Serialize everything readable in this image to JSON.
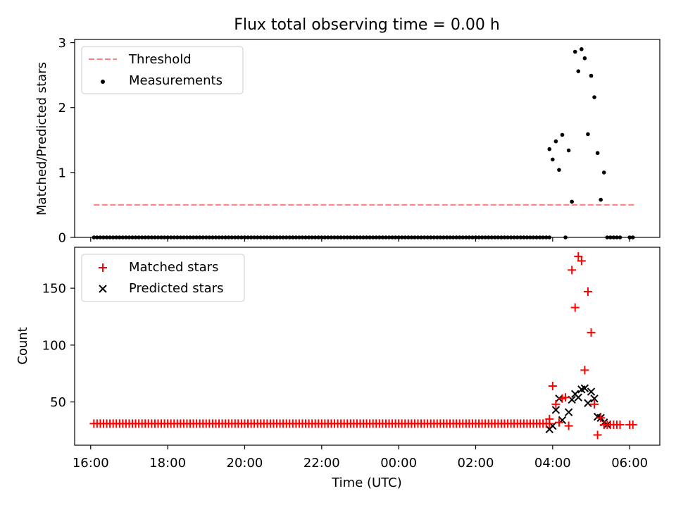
{
  "chart_data": [
    {
      "type": "scatter",
      "title": "Flux total observing time = 0.00 h",
      "xlabel": "",
      "ylabel": "Matched/Predicted stars",
      "ylim": [
        0,
        3.05
      ],
      "xlim": [
        "15:35",
        "06:47"
      ],
      "yticks": [
        "0",
        "1",
        "2",
        "3"
      ],
      "grid": false,
      "legend_position": "top-left",
      "legend": [
        "Threshold",
        "Measurements"
      ],
      "threshold": {
        "name": "Threshold",
        "y": 0.5,
        "x_range": [
          "16:05",
          "06:07"
        ],
        "color": "#ff7f7f",
        "style": "dashed"
      },
      "series": [
        {
          "name": "Measurements",
          "color": "#000000",
          "marker": "dot",
          "zero_run": {
            "x_start": "16:05",
            "x_end": "03:55",
            "y": 0
          },
          "points": [
            {
              "x": "03:55",
              "y": 1.36
            },
            {
              "x": "04:00",
              "y": 1.2
            },
            {
              "x": "04:05",
              "y": 1.48
            },
            {
              "x": "04:10",
              "y": 1.04
            },
            {
              "x": "04:15",
              "y": 1.58
            },
            {
              "x": "04:20",
              "y": 0.0
            },
            {
              "x": "04:25",
              "y": 1.34
            },
            {
              "x": "04:30",
              "y": 0.55
            },
            {
              "x": "04:35",
              "y": 2.86
            },
            {
              "x": "04:40",
              "y": 2.56
            },
            {
              "x": "04:45",
              "y": 2.9
            },
            {
              "x": "04:50",
              "y": 2.76
            },
            {
              "x": "04:55",
              "y": 1.59
            },
            {
              "x": "05:00",
              "y": 2.49
            },
            {
              "x": "05:05",
              "y": 2.16
            },
            {
              "x": "05:10",
              "y": 1.3
            },
            {
              "x": "05:15",
              "y": 0.58
            },
            {
              "x": "05:20",
              "y": 1.0
            },
            {
              "x": "05:25",
              "y": 0.0
            },
            {
              "x": "05:30",
              "y": 0.0
            },
            {
              "x": "05:35",
              "y": 0.0
            },
            {
              "x": "05:40",
              "y": 0.0
            },
            {
              "x": "05:45",
              "y": 0.0
            },
            {
              "x": "06:00",
              "y": 0.0
            },
            {
              "x": "06:05",
              "y": 0.0
            }
          ]
        }
      ]
    },
    {
      "type": "scatter",
      "title": "",
      "xlabel": "Time (UTC)",
      "ylabel": "Count",
      "ylim": [
        12,
        186
      ],
      "xlim": [
        "15:35",
        "06:47"
      ],
      "xticks": [
        "16:00",
        "18:00",
        "20:00",
        "22:00",
        "00:00",
        "02:00",
        "04:00",
        "06:00"
      ],
      "yticks": [
        "50",
        "100",
        "150"
      ],
      "grid": false,
      "legend_position": "top-left",
      "legend": [
        "Matched stars",
        "Predicted stars"
      ],
      "series": [
        {
          "name": "Matched stars",
          "color": "#ff0000",
          "marker": "plus",
          "constant_run": {
            "x_start": "16:05",
            "x_end": "03:55",
            "y": 31
          },
          "points": [
            {
              "x": "03:55",
              "y": 35
            },
            {
              "x": "04:00",
              "y": 64
            },
            {
              "x": "04:05",
              "y": 48
            },
            {
              "x": "04:10",
              "y": 32
            },
            {
              "x": "04:15",
              "y": 53
            },
            {
              "x": "04:20",
              "y": 54
            },
            {
              "x": "04:25",
              "y": 29
            },
            {
              "x": "04:30",
              "y": 166
            },
            {
              "x": "04:35",
              "y": 133
            },
            {
              "x": "04:40",
              "y": 178
            },
            {
              "x": "04:45",
              "y": 174
            },
            {
              "x": "04:50",
              "y": 78
            },
            {
              "x": "04:55",
              "y": 147
            },
            {
              "x": "05:00",
              "y": 111
            },
            {
              "x": "05:05",
              "y": 48
            },
            {
              "x": "05:10",
              "y": 21
            },
            {
              "x": "05:15",
              "y": 36
            },
            {
              "x": "05:20",
              "y": 30
            },
            {
              "x": "05:25",
              "y": 30
            },
            {
              "x": "05:30",
              "y": 30
            },
            {
              "x": "05:35",
              "y": 30
            },
            {
              "x": "05:40",
              "y": 30
            },
            {
              "x": "05:45",
              "y": 30
            },
            {
              "x": "06:00",
              "y": 30
            },
            {
              "x": "06:05",
              "y": 30
            }
          ]
        },
        {
          "name": "Predicted stars",
          "color": "#000000",
          "marker": "x",
          "points": [
            {
              "x": "03:55",
              "y": 26
            },
            {
              "x": "04:00",
              "y": 29
            },
            {
              "x": "04:05",
              "y": 43
            },
            {
              "x": "04:10",
              "y": 53
            },
            {
              "x": "04:15",
              "y": 34
            },
            {
              "x": "04:25",
              "y": 41
            },
            {
              "x": "04:30",
              "y": 52
            },
            {
              "x": "04:35",
              "y": 57
            },
            {
              "x": "04:40",
              "y": 54
            },
            {
              "x": "04:45",
              "y": 61
            },
            {
              "x": "04:50",
              "y": 62
            },
            {
              "x": "04:55",
              "y": 49
            },
            {
              "x": "05:00",
              "y": 59
            },
            {
              "x": "05:05",
              "y": 53
            },
            {
              "x": "05:10",
              "y": 37
            },
            {
              "x": "05:15",
              "y": 36
            },
            {
              "x": "05:20",
              "y": 32
            },
            {
              "x": "05:25",
              "y": 30
            }
          ]
        }
      ]
    }
  ]
}
